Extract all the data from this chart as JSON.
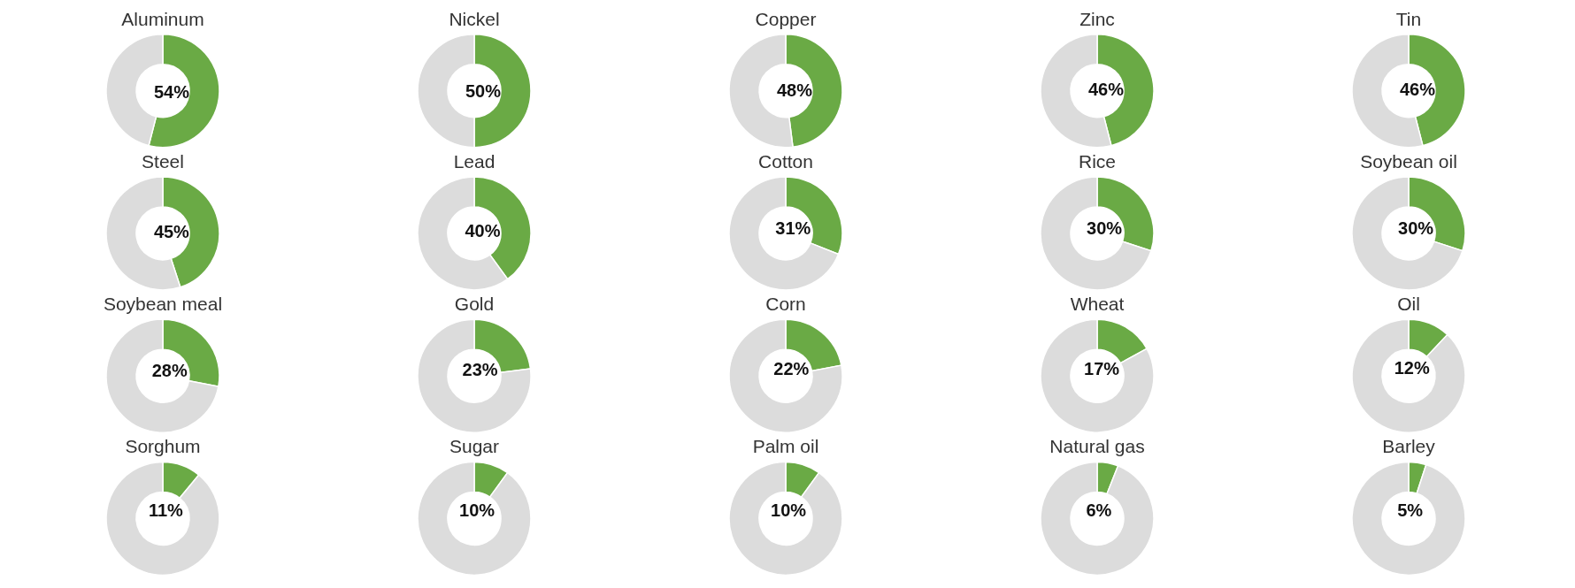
{
  "chart_data": [
    {
      "type": "donut",
      "title": "Aluminum",
      "categories": [
        null,
        null
      ],
      "values": [
        54,
        46
      ],
      "colors": [
        "#6aaa45",
        "#dcdcdc"
      ],
      "value_labels": [
        "54%",
        null
      ]
    },
    {
      "type": "donut",
      "title": "Nickel",
      "categories": [
        null,
        null
      ],
      "values": [
        50,
        50
      ],
      "colors": [
        "#6aaa45",
        "#dcdcdc"
      ],
      "value_labels": [
        "50%",
        null
      ]
    },
    {
      "type": "donut",
      "title": "Copper",
      "categories": [
        null,
        null
      ],
      "values": [
        48,
        52
      ],
      "colors": [
        "#6aaa45",
        "#dcdcdc"
      ],
      "value_labels": [
        "48%",
        null
      ]
    },
    {
      "type": "donut",
      "title": "Zinc",
      "categories": [
        null,
        null
      ],
      "values": [
        46,
        54
      ],
      "colors": [
        "#6aaa45",
        "#dcdcdc"
      ],
      "value_labels": [
        "46%",
        null
      ]
    },
    {
      "type": "donut",
      "title": "Tin",
      "categories": [
        null,
        null
      ],
      "values": [
        46,
        54
      ],
      "colors": [
        "#6aaa45",
        "#dcdcdc"
      ],
      "value_labels": [
        "46%",
        null
      ]
    },
    {
      "type": "donut",
      "title": "Steel",
      "categories": [
        null,
        null
      ],
      "values": [
        45,
        55
      ],
      "colors": [
        "#6aaa45",
        "#dcdcdc"
      ],
      "value_labels": [
        "45%",
        null
      ]
    },
    {
      "type": "donut",
      "title": "Lead",
      "categories": [
        null,
        null
      ],
      "values": [
        40,
        60
      ],
      "colors": [
        "#6aaa45",
        "#dcdcdc"
      ],
      "value_labels": [
        "40%",
        null
      ]
    },
    {
      "type": "donut",
      "title": "Cotton",
      "categories": [
        null,
        null
      ],
      "values": [
        31,
        69
      ],
      "colors": [
        "#6aaa45",
        "#dcdcdc"
      ],
      "value_labels": [
        "31%",
        null
      ]
    },
    {
      "type": "donut",
      "title": "Rice",
      "categories": [
        null,
        null
      ],
      "values": [
        30,
        70
      ],
      "colors": [
        "#6aaa45",
        "#dcdcdc"
      ],
      "value_labels": [
        "30%",
        null
      ]
    },
    {
      "type": "donut",
      "title": "Soybean oil",
      "categories": [
        null,
        null
      ],
      "values": [
        30,
        70
      ],
      "colors": [
        "#6aaa45",
        "#dcdcdc"
      ],
      "value_labels": [
        "30%",
        null
      ]
    },
    {
      "type": "donut",
      "title": "Soybean meal",
      "categories": [
        null,
        null
      ],
      "values": [
        28,
        72
      ],
      "colors": [
        "#6aaa45",
        "#dcdcdc"
      ],
      "value_labels": [
        "28%",
        null
      ]
    },
    {
      "type": "donut",
      "title": "Gold",
      "categories": [
        null,
        null
      ],
      "values": [
        23,
        77
      ],
      "colors": [
        "#6aaa45",
        "#dcdcdc"
      ],
      "value_labels": [
        "23%",
        null
      ]
    },
    {
      "type": "donut",
      "title": "Corn",
      "categories": [
        null,
        null
      ],
      "values": [
        22,
        78
      ],
      "colors": [
        "#6aaa45",
        "#dcdcdc"
      ],
      "value_labels": [
        "22%",
        null
      ]
    },
    {
      "type": "donut",
      "title": "Wheat",
      "categories": [
        null,
        null
      ],
      "values": [
        17,
        83
      ],
      "colors": [
        "#6aaa45",
        "#dcdcdc"
      ],
      "value_labels": [
        "17%",
        null
      ]
    },
    {
      "type": "donut",
      "title": "Oil",
      "categories": [
        null,
        null
      ],
      "values": [
        12,
        88
      ],
      "colors": [
        "#6aaa45",
        "#dcdcdc"
      ],
      "value_labels": [
        "12%",
        null
      ]
    },
    {
      "type": "donut",
      "title": "Sorghum",
      "categories": [
        null,
        null
      ],
      "values": [
        11,
        89
      ],
      "colors": [
        "#6aaa45",
        "#dcdcdc"
      ],
      "value_labels": [
        "11%",
        null
      ]
    },
    {
      "type": "donut",
      "title": "Sugar",
      "categories": [
        null,
        null
      ],
      "values": [
        10,
        90
      ],
      "colors": [
        "#6aaa45",
        "#dcdcdc"
      ],
      "value_labels": [
        "10%",
        null
      ]
    },
    {
      "type": "donut",
      "title": "Palm oil",
      "categories": [
        null,
        null
      ],
      "values": [
        10,
        90
      ],
      "colors": [
        "#6aaa45",
        "#dcdcdc"
      ],
      "value_labels": [
        "10%",
        null
      ]
    },
    {
      "type": "donut",
      "title": "Natural gas",
      "categories": [
        null,
        null
      ],
      "values": [
        6,
        94
      ],
      "colors": [
        "#6aaa45",
        "#dcdcdc"
      ],
      "value_labels": [
        "6%",
        null
      ]
    },
    {
      "type": "donut",
      "title": "Barley",
      "categories": [
        null,
        null
      ],
      "values": [
        5,
        95
      ],
      "colors": [
        "#6aaa45",
        "#dcdcdc"
      ],
      "value_labels": [
        "5%",
        null
      ]
    }
  ]
}
